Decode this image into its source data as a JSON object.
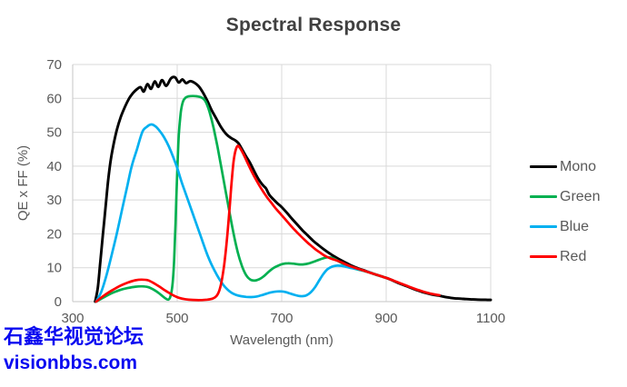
{
  "watermark": {
    "line1": "石鑫华视觉论坛",
    "line2": "visionbbs.com",
    "color": "#0a0af0"
  },
  "styles": {
    "title_color": "#404040",
    "axis_text_color": "#595959",
    "gridline_color": "#d9d9d9",
    "axis_line_color": "#c6c6c6"
  },
  "chart_data": {
    "type": "line",
    "title": "Spectral Response",
    "xlabel": "Wavelength (nm)",
    "ylabel": "QE x FF (%)",
    "xlim": [
      300,
      1100
    ],
    "ylim": [
      0,
      70
    ],
    "xticks": [
      300,
      500,
      700,
      900,
      1100
    ],
    "yticks": [
      0,
      10,
      20,
      30,
      40,
      50,
      60,
      70
    ],
    "grid": true,
    "legend_position": "right",
    "legend_order": [
      "Mono",
      "Green",
      "Blue",
      "Red"
    ],
    "series": [
      {
        "name": "Mono",
        "color": "#000000",
        "points": [
          [
            343,
            0
          ],
          [
            348,
            4
          ],
          [
            353,
            12
          ],
          [
            358,
            20
          ],
          [
            363,
            28
          ],
          [
            368,
            36
          ],
          [
            373,
            42
          ],
          [
            379,
            47
          ],
          [
            385,
            51
          ],
          [
            392,
            54.5
          ],
          [
            400,
            57.5
          ],
          [
            408,
            60
          ],
          [
            415,
            61.5
          ],
          [
            423,
            62.7
          ],
          [
            430,
            63.3
          ],
          [
            436,
            62
          ],
          [
            443,
            64.2
          ],
          [
            450,
            62.8
          ],
          [
            457,
            65
          ],
          [
            464,
            63.4
          ],
          [
            471,
            65.4
          ],
          [
            479,
            63.7
          ],
          [
            488,
            65.9
          ],
          [
            496,
            66.2
          ],
          [
            503,
            64.7
          ],
          [
            510,
            65.6
          ],
          [
            517,
            64.5
          ],
          [
            525,
            65.1
          ],
          [
            533,
            64.6
          ],
          [
            541,
            63.6
          ],
          [
            549,
            61.8
          ],
          [
            557,
            59.5
          ],
          [
            566,
            56.5
          ],
          [
            575,
            54
          ],
          [
            584,
            51.5
          ],
          [
            593,
            49.6
          ],
          [
            602,
            48.4
          ],
          [
            611,
            47.6
          ],
          [
            617,
            46.8
          ],
          [
            624,
            45
          ],
          [
            632,
            42.8
          ],
          [
            640,
            40.8
          ],
          [
            649,
            38
          ],
          [
            657,
            35.8
          ],
          [
            665,
            34.2
          ],
          [
            670,
            33.4
          ],
          [
            676,
            31.6
          ],
          [
            684,
            30.2
          ],
          [
            692,
            29
          ],
          [
            700,
            27.9
          ],
          [
            710,
            26.2
          ],
          [
            720,
            24.4
          ],
          [
            730,
            22.7
          ],
          [
            740,
            21
          ],
          [
            750,
            19.5
          ],
          [
            760,
            18
          ],
          [
            770,
            16.7
          ],
          [
            780,
            15.5
          ],
          [
            790,
            14.4
          ],
          [
            800,
            13.4
          ],
          [
            810,
            12.5
          ],
          [
            820,
            11.7
          ],
          [
            830,
            10.9
          ],
          [
            840,
            10.2
          ],
          [
            850,
            9.6
          ],
          [
            860,
            9.1
          ],
          [
            870,
            8.5
          ],
          [
            880,
            8
          ],
          [
            890,
            7.5
          ],
          [
            900,
            7
          ],
          [
            910,
            6.4
          ],
          [
            920,
            5.7
          ],
          [
            930,
            5.1
          ],
          [
            940,
            4.5
          ],
          [
            950,
            3.9
          ],
          [
            960,
            3.3
          ],
          [
            970,
            2.8
          ],
          [
            980,
            2.4
          ],
          [
            990,
            2
          ],
          [
            1000,
            1.8
          ],
          [
            1012,
            1.4
          ],
          [
            1024,
            1.1
          ],
          [
            1036,
            0.9
          ],
          [
            1048,
            0.8
          ],
          [
            1060,
            0.7
          ],
          [
            1075,
            0.6
          ],
          [
            1090,
            0.55
          ],
          [
            1100,
            0.5
          ]
        ]
      },
      {
        "name": "Green",
        "color": "#00b050",
        "points": [
          [
            345,
            0
          ],
          [
            360,
            1.3
          ],
          [
            375,
            2.5
          ],
          [
            390,
            3.4
          ],
          [
            405,
            4
          ],
          [
            420,
            4.4
          ],
          [
            432,
            4.5
          ],
          [
            444,
            4.3
          ],
          [
            454,
            3.6
          ],
          [
            464,
            2.6
          ],
          [
            472,
            1.6
          ],
          [
            478,
            0.9
          ],
          [
            483,
            0.6
          ],
          [
            487,
            1.5
          ],
          [
            491,
            5
          ],
          [
            494,
            12
          ],
          [
            497,
            24
          ],
          [
            500,
            38
          ],
          [
            503,
            49
          ],
          [
            507,
            56
          ],
          [
            511,
            59
          ],
          [
            516,
            60.2
          ],
          [
            522,
            60.6
          ],
          [
            530,
            60.7
          ],
          [
            538,
            60.6
          ],
          [
            546,
            60.3
          ],
          [
            552,
            59.6
          ],
          [
            558,
            57.8
          ],
          [
            564,
            54.8
          ],
          [
            570,
            51
          ],
          [
            577,
            45.8
          ],
          [
            584,
            40
          ],
          [
            592,
            33.2
          ],
          [
            600,
            26.5
          ],
          [
            608,
            20
          ],
          [
            616,
            14.5
          ],
          [
            624,
            10.5
          ],
          [
            632,
            7.8
          ],
          [
            640,
            6.5
          ],
          [
            648,
            6.2
          ],
          [
            657,
            6.6
          ],
          [
            666,
            7.5
          ],
          [
            675,
            8.8
          ],
          [
            684,
            9.9
          ],
          [
            693,
            10.6
          ],
          [
            702,
            11.1
          ],
          [
            712,
            11.3
          ],
          [
            722,
            11.2
          ],
          [
            732,
            11
          ],
          [
            742,
            11
          ],
          [
            752,
            11.3
          ],
          [
            762,
            11.8
          ],
          [
            772,
            12.4
          ],
          [
            782,
            12.9
          ],
          [
            790,
            13.1
          ],
          [
            798,
            12.8
          ],
          [
            808,
            12
          ],
          [
            818,
            11.1
          ],
          [
            828,
            10.4
          ],
          [
            838,
            9.8
          ],
          [
            848,
            9.4
          ],
          [
            858,
            9
          ],
          [
            868,
            8.6
          ],
          [
            878,
            8.1
          ],
          [
            888,
            7.6
          ],
          [
            898,
            7.1
          ]
        ]
      },
      {
        "name": "Blue",
        "color": "#00b0f0",
        "points": [
          [
            345,
            0
          ],
          [
            355,
            3
          ],
          [
            365,
            8
          ],
          [
            375,
            14
          ],
          [
            385,
            20.5
          ],
          [
            395,
            27.5
          ],
          [
            405,
            34.5
          ],
          [
            413,
            40
          ],
          [
            422,
            44.5
          ],
          [
            433,
            50
          ],
          [
            441,
            51.5
          ],
          [
            450,
            52.3
          ],
          [
            458,
            51.8
          ],
          [
            466,
            50.5
          ],
          [
            475,
            48.5
          ],
          [
            484,
            45.8
          ],
          [
            492,
            42.8
          ],
          [
            500,
            39.5
          ],
          [
            508,
            35.5
          ],
          [
            516,
            32
          ],
          [
            524,
            28.5
          ],
          [
            532,
            25
          ],
          [
            540,
            21.5
          ],
          [
            548,
            18
          ],
          [
            556,
            14.5
          ],
          [
            564,
            11.5
          ],
          [
            572,
            9
          ],
          [
            580,
            6.8
          ],
          [
            588,
            5
          ],
          [
            596,
            3.6
          ],
          [
            604,
            2.6
          ],
          [
            612,
            2
          ],
          [
            622,
            1.6
          ],
          [
            632,
            1.4
          ],
          [
            642,
            1.35
          ],
          [
            652,
            1.5
          ],
          [
            662,
            1.9
          ],
          [
            672,
            2.4
          ],
          [
            682,
            2.8
          ],
          [
            692,
            3
          ],
          [
            700,
            3
          ],
          [
            708,
            2.8
          ],
          [
            716,
            2.4
          ],
          [
            724,
            2
          ],
          [
            732,
            1.7
          ],
          [
            740,
            1.6
          ],
          [
            748,
            1.9
          ],
          [
            756,
            2.8
          ],
          [
            764,
            4.3
          ],
          [
            772,
            6.3
          ],
          [
            780,
            8.2
          ],
          [
            788,
            9.6
          ],
          [
            796,
            10.3
          ],
          [
            804,
            10.6
          ],
          [
            812,
            10.6
          ],
          [
            820,
            10.4
          ],
          [
            830,
            10
          ],
          [
            840,
            9.7
          ],
          [
            850,
            9.4
          ],
          [
            860,
            9
          ],
          [
            870,
            8.6
          ]
        ]
      },
      {
        "name": "Red",
        "color": "#ff0000",
        "points": [
          [
            345,
            0
          ],
          [
            360,
            1.8
          ],
          [
            375,
            3.3
          ],
          [
            390,
            4.6
          ],
          [
            405,
            5.6
          ],
          [
            420,
            6.3
          ],
          [
            432,
            6.5
          ],
          [
            444,
            6.3
          ],
          [
            456,
            5.4
          ],
          [
            468,
            4.2
          ],
          [
            480,
            3
          ],
          [
            492,
            1.9
          ],
          [
            504,
            1.1
          ],
          [
            516,
            0.7
          ],
          [
            530,
            0.5
          ],
          [
            545,
            0.45
          ],
          [
            558,
            0.6
          ],
          [
            568,
            0.9
          ],
          [
            575,
            1.6
          ],
          [
            580,
            3
          ],
          [
            585,
            6
          ],
          [
            590,
            11
          ],
          [
            595,
            18
          ],
          [
            600,
            27
          ],
          [
            604,
            35
          ],
          [
            608,
            41.5
          ],
          [
            612,
            44.8
          ],
          [
            616,
            46
          ],
          [
            620,
            45.4
          ],
          [
            626,
            43.8
          ],
          [
            632,
            41.8
          ],
          [
            640,
            39.2
          ],
          [
            648,
            36.8
          ],
          [
            656,
            34.6
          ],
          [
            664,
            32.6
          ],
          [
            672,
            30.8
          ],
          [
            680,
            29.2
          ],
          [
            688,
            27.6
          ],
          [
            696,
            26.2
          ],
          [
            704,
            24.8
          ],
          [
            714,
            23
          ],
          [
            724,
            21.3
          ],
          [
            734,
            19.7
          ],
          [
            744,
            18.2
          ],
          [
            754,
            16.8
          ],
          [
            764,
            15.5
          ],
          [
            774,
            14.4
          ],
          [
            784,
            13.4
          ],
          [
            794,
            12.7
          ],
          [
            804,
            12.2
          ],
          [
            814,
            11.6
          ],
          [
            824,
            10.9
          ],
          [
            834,
            10.3
          ],
          [
            844,
            9.8
          ],
          [
            854,
            9.3
          ],
          [
            864,
            8.8
          ],
          [
            874,
            8.3
          ],
          [
            884,
            7.8
          ],
          [
            894,
            7.3
          ],
          [
            904,
            6.8
          ],
          [
            914,
            6.2
          ],
          [
            924,
            5.6
          ],
          [
            934,
            5
          ],
          [
            944,
            4.4
          ],
          [
            954,
            3.8
          ],
          [
            964,
            3.3
          ],
          [
            974,
            2.8
          ],
          [
            984,
            2.4
          ],
          [
            994,
            2.1
          ],
          [
            1002,
            1.9
          ]
        ]
      }
    ]
  }
}
